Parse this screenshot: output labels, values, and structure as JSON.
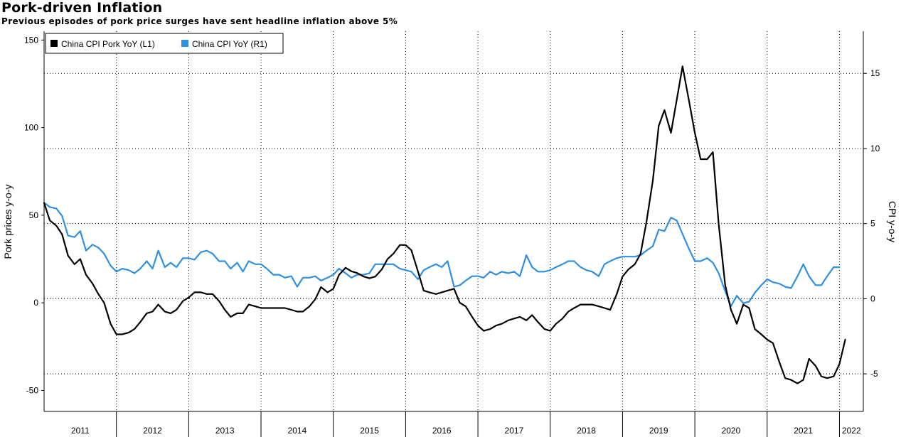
{
  "chart_data": {
    "type": "line",
    "title": "Pork-driven Inflation",
    "subtitle": "Previous episodes of pork price surges have sent headline inflation above 5%",
    "left_axis": {
      "label": "Pork prices y-o-y",
      "ticks": [
        -50,
        0,
        50,
        100,
        150
      ],
      "ylim": [
        -62,
        155
      ]
    },
    "right_axis": {
      "label": "CPI y-o-y",
      "ticks": [
        -5,
        0,
        5,
        10,
        15
      ],
      "ylim": [
        -7.5,
        17.8
      ]
    },
    "x_axis": {
      "year_labels": [
        "2011",
        "2012",
        "2013",
        "2014",
        "2015",
        "2016",
        "2017",
        "2018",
        "2019",
        "2020",
        "2021",
        "2022"
      ],
      "xlim": [
        2011.0,
        2022.33
      ]
    },
    "grid": true,
    "legend": {
      "position": "top-left",
      "entries": [
        {
          "label": "China CPI Pork YoY  (L1)",
          "color": "#000000"
        },
        {
          "label": "China CPI YoY  (R1)",
          "color": "#2f8fe0"
        }
      ]
    },
    "series": [
      {
        "name": "China CPI Pork YoY  (L1)",
        "axis": "left",
        "color": "#000000",
        "points": [
          [
            2011.0,
            57
          ],
          [
            2011.08,
            47
          ],
          [
            2011.17,
            44
          ],
          [
            2011.25,
            39
          ],
          [
            2011.33,
            27
          ],
          [
            2011.42,
            22
          ],
          [
            2011.5,
            25
          ],
          [
            2011.58,
            16
          ],
          [
            2011.67,
            11
          ],
          [
            2011.75,
            5
          ],
          [
            2011.83,
            0
          ],
          [
            2011.92,
            -12
          ],
          [
            2012.0,
            -18
          ],
          [
            2012.08,
            -18
          ],
          [
            2012.17,
            -17
          ],
          [
            2012.25,
            -15
          ],
          [
            2012.33,
            -11
          ],
          [
            2012.42,
            -6
          ],
          [
            2012.5,
            -5
          ],
          [
            2012.58,
            -1
          ],
          [
            2012.67,
            -5
          ],
          [
            2012.75,
            -6
          ],
          [
            2012.83,
            -4
          ],
          [
            2012.92,
            1
          ],
          [
            2013.0,
            3
          ],
          [
            2013.08,
            6
          ],
          [
            2013.17,
            6
          ],
          [
            2013.25,
            5
          ],
          [
            2013.33,
            5
          ],
          [
            2013.42,
            1
          ],
          [
            2013.5,
            -4
          ],
          [
            2013.58,
            -8
          ],
          [
            2013.67,
            -6
          ],
          [
            2013.75,
            -6
          ],
          [
            2013.83,
            -1
          ],
          [
            2013.92,
            -2
          ],
          [
            2014.0,
            -3
          ],
          [
            2014.08,
            -3
          ],
          [
            2014.17,
            -3
          ],
          [
            2014.25,
            -3
          ],
          [
            2014.33,
            -3
          ],
          [
            2014.42,
            -4
          ],
          [
            2014.5,
            -5
          ],
          [
            2014.58,
            -5
          ],
          [
            2014.67,
            -2
          ],
          [
            2014.75,
            2
          ],
          [
            2014.83,
            9
          ],
          [
            2014.92,
            6
          ],
          [
            2015.0,
            8
          ],
          [
            2015.08,
            16
          ],
          [
            2015.17,
            20
          ],
          [
            2015.25,
            18
          ],
          [
            2015.33,
            17
          ],
          [
            2015.42,
            15
          ],
          [
            2015.5,
            14
          ],
          [
            2015.58,
            15
          ],
          [
            2015.67,
            19
          ],
          [
            2015.75,
            25
          ],
          [
            2015.83,
            28
          ],
          [
            2015.92,
            33
          ],
          [
            2016.0,
            33
          ],
          [
            2016.08,
            30
          ],
          [
            2016.17,
            18
          ],
          [
            2016.25,
            7
          ],
          [
            2016.33,
            6
          ],
          [
            2016.42,
            5
          ],
          [
            2016.5,
            6
          ],
          [
            2016.58,
            7
          ],
          [
            2016.67,
            8
          ],
          [
            2016.75,
            0
          ],
          [
            2016.83,
            -2
          ],
          [
            2016.92,
            -8
          ],
          [
            2017.0,
            -13
          ],
          [
            2017.08,
            -16
          ],
          [
            2017.17,
            -15
          ],
          [
            2017.25,
            -13
          ],
          [
            2017.33,
            -12
          ],
          [
            2017.42,
            -10
          ],
          [
            2017.5,
            -9
          ],
          [
            2017.58,
            -8
          ],
          [
            2017.67,
            -10
          ],
          [
            2017.75,
            -7
          ],
          [
            2017.83,
            -11
          ],
          [
            2017.92,
            -15
          ],
          [
            2018.0,
            -16
          ],
          [
            2018.08,
            -12
          ],
          [
            2018.17,
            -9
          ],
          [
            2018.25,
            -5
          ],
          [
            2018.33,
            -3
          ],
          [
            2018.42,
            -1
          ],
          [
            2018.5,
            -1
          ],
          [
            2018.58,
            -1
          ],
          [
            2018.67,
            -2
          ],
          [
            2018.75,
            -3
          ],
          [
            2018.83,
            -4
          ],
          [
            2018.92,
            5
          ],
          [
            2019.0,
            15
          ],
          [
            2019.08,
            19
          ],
          [
            2019.17,
            22
          ],
          [
            2019.25,
            28
          ],
          [
            2019.33,
            46
          ],
          [
            2019.42,
            70
          ],
          [
            2019.5,
            101
          ],
          [
            2019.58,
            110
          ],
          [
            2019.67,
            97
          ],
          [
            2019.75,
            116
          ],
          [
            2019.83,
            135
          ],
          [
            2019.92,
            115
          ],
          [
            2020.0,
            97
          ],
          [
            2020.08,
            82
          ],
          [
            2020.17,
            82
          ],
          [
            2020.25,
            86
          ],
          [
            2020.33,
            45
          ],
          [
            2020.42,
            10
          ],
          [
            2020.5,
            -4
          ],
          [
            2020.58,
            -12
          ],
          [
            2020.67,
            -1
          ],
          [
            2020.75,
            -3
          ],
          [
            2020.83,
            -15
          ],
          [
            2020.92,
            -18
          ],
          [
            2021.0,
            -21
          ],
          [
            2021.08,
            -23
          ],
          [
            2021.17,
            -34
          ],
          [
            2021.25,
            -43
          ],
          [
            2021.33,
            -44
          ],
          [
            2021.42,
            -46
          ],
          [
            2021.5,
            -44
          ],
          [
            2021.58,
            -32
          ],
          [
            2021.67,
            -36
          ],
          [
            2021.75,
            -42
          ],
          [
            2021.83,
            -43
          ],
          [
            2021.92,
            -42
          ],
          [
            2022.0,
            -35
          ],
          [
            2022.08,
            -21
          ]
        ]
      },
      {
        "name": "China CPI YoY  (R1)",
        "axis": "right",
        "color": "#2f8fe0",
        "points": [
          [
            2011.0,
            6.4
          ],
          [
            2011.08,
            6.1
          ],
          [
            2011.17,
            6.0
          ],
          [
            2011.25,
            5.5
          ],
          [
            2011.33,
            4.2
          ],
          [
            2011.42,
            4.1
          ],
          [
            2011.5,
            4.5
          ],
          [
            2011.58,
            3.2
          ],
          [
            2011.67,
            3.6
          ],
          [
            2011.75,
            3.4
          ],
          [
            2011.83,
            3.0
          ],
          [
            2011.92,
            2.2
          ],
          [
            2012.0,
            1.8
          ],
          [
            2012.08,
            2.0
          ],
          [
            2012.17,
            1.9
          ],
          [
            2012.25,
            1.7
          ],
          [
            2012.33,
            2.0
          ],
          [
            2012.42,
            2.5
          ],
          [
            2012.5,
            2.0
          ],
          [
            2012.58,
            3.2
          ],
          [
            2012.67,
            2.1
          ],
          [
            2012.75,
            2.4
          ],
          [
            2012.83,
            2.1
          ],
          [
            2012.92,
            2.7
          ],
          [
            2013.0,
            2.7
          ],
          [
            2013.08,
            2.6
          ],
          [
            2013.17,
            3.1
          ],
          [
            2013.25,
            3.2
          ],
          [
            2013.33,
            3.0
          ],
          [
            2013.42,
            2.5
          ],
          [
            2013.5,
            2.5
          ],
          [
            2013.58,
            2.0
          ],
          [
            2013.67,
            2.4
          ],
          [
            2013.75,
            1.8
          ],
          [
            2013.83,
            2.5
          ],
          [
            2013.92,
            2.3
          ],
          [
            2014.0,
            2.3
          ],
          [
            2014.08,
            2.0
          ],
          [
            2014.17,
            1.6
          ],
          [
            2014.25,
            1.6
          ],
          [
            2014.33,
            1.4
          ],
          [
            2014.42,
            1.5
          ],
          [
            2014.5,
            0.8
          ],
          [
            2014.58,
            1.4
          ],
          [
            2014.67,
            1.4
          ],
          [
            2014.75,
            1.5
          ],
          [
            2014.83,
            1.2
          ],
          [
            2014.92,
            1.4
          ],
          [
            2015.0,
            1.6
          ],
          [
            2015.08,
            2.0
          ],
          [
            2015.17,
            1.7
          ],
          [
            2015.25,
            1.4
          ],
          [
            2015.33,
            1.6
          ],
          [
            2015.42,
            1.6
          ],
          [
            2015.5,
            1.7
          ],
          [
            2015.58,
            2.3
          ],
          [
            2015.67,
            2.3
          ],
          [
            2015.75,
            2.3
          ],
          [
            2015.83,
            2.3
          ],
          [
            2015.92,
            2.0
          ],
          [
            2016.0,
            1.9
          ],
          [
            2016.08,
            1.8
          ],
          [
            2016.17,
            1.3
          ],
          [
            2016.25,
            1.9
          ],
          [
            2016.33,
            2.1
          ],
          [
            2016.42,
            2.3
          ],
          [
            2016.5,
            2.1
          ],
          [
            2016.58,
            2.5
          ],
          [
            2016.67,
            0.8
          ],
          [
            2016.75,
            0.9
          ],
          [
            2016.83,
            1.2
          ],
          [
            2016.92,
            1.5
          ],
          [
            2017.0,
            1.5
          ],
          [
            2017.08,
            1.4
          ],
          [
            2017.17,
            1.8
          ],
          [
            2017.25,
            1.6
          ],
          [
            2017.33,
            1.8
          ],
          [
            2017.42,
            1.7
          ],
          [
            2017.5,
            1.8
          ],
          [
            2017.58,
            1.5
          ],
          [
            2017.67,
            2.9
          ],
          [
            2017.75,
            2.1
          ],
          [
            2017.83,
            1.8
          ],
          [
            2017.92,
            1.8
          ],
          [
            2018.0,
            1.9
          ],
          [
            2018.08,
            2.1
          ],
          [
            2018.17,
            2.3
          ],
          [
            2018.25,
            2.5
          ],
          [
            2018.33,
            2.5
          ],
          [
            2018.42,
            2.1
          ],
          [
            2018.5,
            1.9
          ],
          [
            2018.58,
            1.8
          ],
          [
            2018.67,
            1.5
          ],
          [
            2018.75,
            2.3
          ],
          [
            2018.83,
            2.5
          ],
          [
            2018.92,
            2.7
          ],
          [
            2019.0,
            2.8
          ],
          [
            2019.08,
            2.8
          ],
          [
            2019.17,
            2.8
          ],
          [
            2019.25,
            2.9
          ],
          [
            2019.33,
            3.2
          ],
          [
            2019.42,
            3.5
          ],
          [
            2019.5,
            4.6
          ],
          [
            2019.58,
            4.5
          ],
          [
            2019.67,
            5.4
          ],
          [
            2019.75,
            5.2
          ],
          [
            2019.83,
            4.3
          ],
          [
            2019.92,
            3.3
          ],
          [
            2020.0,
            2.5
          ],
          [
            2020.08,
            2.5
          ],
          [
            2020.17,
            2.7
          ],
          [
            2020.25,
            2.4
          ],
          [
            2020.33,
            1.7
          ],
          [
            2020.42,
            0.5
          ],
          [
            2020.5,
            -0.5
          ],
          [
            2020.58,
            0.2
          ],
          [
            2020.67,
            -0.3
          ],
          [
            2020.75,
            -0.2
          ],
          [
            2020.83,
            0.4
          ],
          [
            2020.92,
            0.9
          ],
          [
            2021.0,
            1.3
          ],
          [
            2021.08,
            1.1
          ],
          [
            2021.17,
            1.0
          ],
          [
            2021.25,
            0.8
          ],
          [
            2021.33,
            0.7
          ],
          [
            2021.42,
            1.5
          ],
          [
            2021.5,
            2.3
          ],
          [
            2021.58,
            1.5
          ],
          [
            2021.67,
            0.9
          ],
          [
            2021.75,
            0.9
          ],
          [
            2021.83,
            1.5
          ],
          [
            2021.92,
            2.1
          ],
          [
            2022.0,
            2.1
          ]
        ]
      }
    ]
  }
}
